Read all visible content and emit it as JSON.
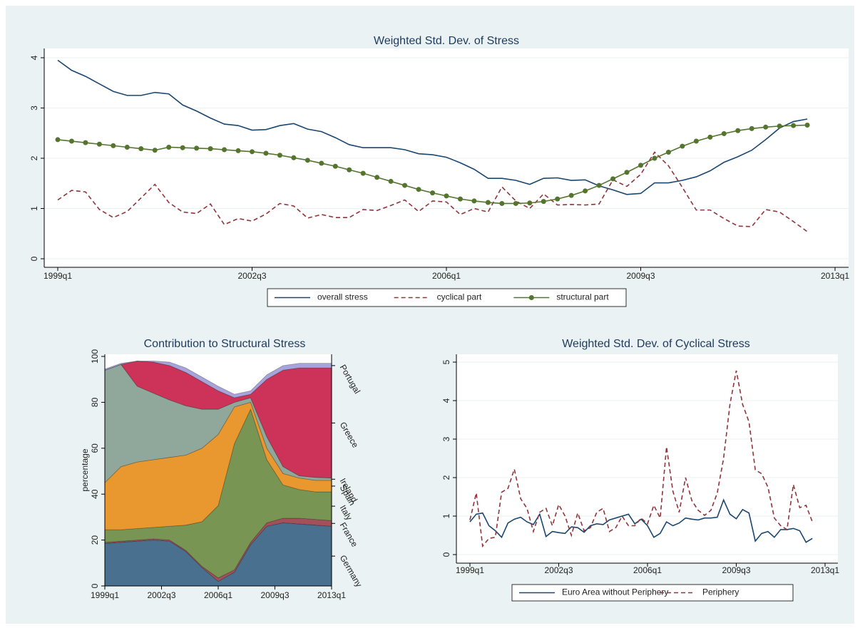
{
  "chart_data": [
    {
      "type": "line",
      "title": "Weighted Std. Dev. of Stress",
      "x": [
        "1999q1",
        "1999q2",
        "1999q3",
        "1999q4",
        "2000q1",
        "2000q2",
        "2000q3",
        "2000q4",
        "2001q1",
        "2001q2",
        "2001q3",
        "2001q4",
        "2002q1",
        "2002q2",
        "2002q3",
        "2002q4",
        "2003q1",
        "2003q2",
        "2003q3",
        "2003q4",
        "2004q1",
        "2004q2",
        "2004q3",
        "2004q4",
        "2005q1",
        "2005q2",
        "2005q3",
        "2005q4",
        "2006q1",
        "2006q2",
        "2006q3",
        "2006q4",
        "2007q1",
        "2007q2",
        "2007q3",
        "2007q4",
        "2008q1",
        "2008q2",
        "2008q3",
        "2008q4",
        "2009q1",
        "2009q2",
        "2009q3",
        "2009q4",
        "2010q1",
        "2010q2",
        "2010q3",
        "2010q4",
        "2011q1",
        "2011q2",
        "2011q3",
        "2011q4",
        "2012q1",
        "2012q2",
        "2012q3"
      ],
      "series": [
        {
          "name": "overall stress",
          "color": "#1a476f",
          "dash": false,
          "marker": false,
          "values": [
            3.95,
            3.75,
            3.63,
            3.48,
            3.33,
            3.25,
            3.25,
            3.31,
            3.28,
            3.06,
            2.94,
            2.8,
            2.68,
            2.65,
            2.56,
            2.57,
            2.65,
            2.69,
            2.58,
            2.53,
            2.41,
            2.27,
            2.21,
            2.21,
            2.21,
            2.17,
            2.09,
            2.07,
            2.02,
            1.91,
            1.78,
            1.6,
            1.6,
            1.56,
            1.48,
            1.6,
            1.61,
            1.56,
            1.57,
            1.45,
            1.37,
            1.28,
            1.3,
            1.51,
            1.51,
            1.56,
            1.63,
            1.75,
            1.92,
            2.03,
            2.16,
            2.37,
            2.6,
            2.73,
            2.78
          ]
        },
        {
          "name": "cyclical part",
          "color": "#90353b",
          "dash": true,
          "marker": false,
          "values": [
            1.17,
            1.36,
            1.33,
            0.98,
            0.82,
            0.94,
            1.21,
            1.48,
            1.12,
            0.93,
            0.9,
            1.09,
            0.68,
            0.8,
            0.75,
            0.89,
            1.1,
            1.05,
            0.81,
            0.88,
            0.82,
            0.82,
            0.98,
            0.96,
            1.06,
            1.17,
            0.94,
            1.15,
            1.13,
            0.88,
            1.0,
            0.93,
            1.43,
            1.15,
            1.0,
            1.29,
            1.07,
            1.08,
            1.07,
            1.09,
            1.57,
            1.44,
            1.68,
            2.12,
            1.85,
            1.42,
            0.97,
            0.97,
            0.8,
            0.65,
            0.64,
            0.98,
            0.93,
            0.74,
            0.54
          ]
        },
        {
          "name": "structural part",
          "color": "#55752f",
          "dash": false,
          "marker": true,
          "values": [
            2.37,
            2.34,
            2.31,
            2.28,
            2.25,
            2.22,
            2.19,
            2.16,
            2.22,
            2.21,
            2.2,
            2.19,
            2.17,
            2.15,
            2.13,
            2.1,
            2.06,
            2.01,
            1.96,
            1.9,
            1.84,
            1.77,
            1.7,
            1.62,
            1.54,
            1.46,
            1.38,
            1.31,
            1.25,
            1.19,
            1.15,
            1.12,
            1.1,
            1.1,
            1.11,
            1.14,
            1.19,
            1.26,
            1.35,
            1.46,
            1.59,
            1.72,
            1.86,
            2.0,
            2.12,
            2.24,
            2.34,
            2.42,
            2.49,
            2.55,
            2.59,
            2.62,
            2.64,
            2.65,
            2.66
          ]
        }
      ],
      "xlim": [
        "1999q1",
        "2013q1"
      ],
      "xticks": [
        "1999q1",
        "2002q3",
        "2006q1",
        "2009q3",
        "2013q1"
      ],
      "ylim": [
        0,
        4
      ],
      "yticks": [
        0,
        1,
        2,
        3,
        4
      ],
      "grid": true,
      "legend": "bottom"
    },
    {
      "type": "area",
      "title": "Contribution to Structural Stress",
      "ylabel": "percentage",
      "stacked": true,
      "x": [
        "1999q1",
        "2000q1",
        "2001q1",
        "2002q1",
        "2003q1",
        "2004q1",
        "2005q1",
        "2006q1",
        "2007q1",
        "2008q1",
        "2009q1",
        "2010q1",
        "2011q1",
        "2012q1",
        "2013q1"
      ],
      "series": [
        {
          "name": "Germany",
          "color": "#49708f",
          "values": [
            18.5,
            19,
            19.5,
            20,
            19.5,
            15,
            8,
            2,
            6,
            18,
            26,
            27.5,
            27,
            26.5,
            26
          ]
        },
        {
          "name": "France",
          "color": "#a4505a",
          "values": [
            0.5,
            0.5,
            0.5,
            0.5,
            0.5,
            0.5,
            0.5,
            1.5,
            1,
            1,
            1.5,
            2,
            2.5,
            2.5,
            2.5
          ]
        },
        {
          "name": "Italy",
          "color": "#789553",
          "values": [
            5.5,
            5,
            5,
            5,
            6,
            11,
            19.5,
            31.5,
            55,
            58,
            27.5,
            14.5,
            12.5,
            12,
            12.5
          ]
        },
        {
          "name": "Spain",
          "color": "#e8982f",
          "values": [
            20.5,
            27.5,
            29,
            29.5,
            30,
            30.5,
            32,
            31,
            16,
            3,
            5,
            5,
            5,
            5,
            5
          ]
        },
        {
          "name": "Ireland",
          "color": "#8fa89b",
          "values": [
            49,
            44.5,
            33,
            29,
            25,
            21.5,
            17,
            11,
            2,
            2,
            5,
            3,
            1,
            1.3,
            1
          ]
        },
        {
          "name": "Greece",
          "color": "#cd3359",
          "values": [
            0,
            0,
            11,
            13.5,
            15,
            14.5,
            12,
            8,
            2,
            1.5,
            25,
            42,
            47,
            47.7,
            48
          ]
        },
        {
          "name": "Portugal",
          "color": "#a6a4da",
          "values": [
            0.5,
            0.5,
            0,
            0.5,
            1.5,
            2,
            2,
            2,
            1.5,
            1.5,
            2,
            2,
            2,
            2,
            2
          ]
        }
      ],
      "xlim": [
        "1999q1",
        "2013q1"
      ],
      "xticks": [
        "1999q1",
        "2002q3",
        "2006q1",
        "2009q3",
        "2013q1"
      ],
      "ylim": [
        0,
        100
      ],
      "yticks": [
        0,
        20,
        40,
        60,
        80,
        100
      ],
      "grid": false,
      "legend": "right"
    },
    {
      "type": "line",
      "title": "Weighted Std. Dev. of Cyclical Stress",
      "x": [
        "1999q1",
        "1999q2",
        "1999q3",
        "1999q4",
        "2000q1",
        "2000q2",
        "2000q3",
        "2000q4",
        "2001q1",
        "2001q2",
        "2001q3",
        "2001q4",
        "2002q1",
        "2002q2",
        "2002q3",
        "2002q4",
        "2003q1",
        "2003q2",
        "2003q3",
        "2003q4",
        "2004q1",
        "2004q2",
        "2004q3",
        "2004q4",
        "2005q1",
        "2005q2",
        "2005q3",
        "2005q4",
        "2006q1",
        "2006q2",
        "2006q3",
        "2006q4",
        "2007q1",
        "2007q2",
        "2007q3",
        "2007q4",
        "2008q1",
        "2008q2",
        "2008q3",
        "2008q4",
        "2009q1",
        "2009q2",
        "2009q3",
        "2009q4",
        "2010q1",
        "2010q2",
        "2010q3",
        "2010q4",
        "2011q1",
        "2011q2",
        "2011q3",
        "2011q4",
        "2012q1",
        "2012q2",
        "2012q3"
      ],
      "series": [
        {
          "name": "Euro Area without Periphery",
          "color": "#1a476f",
          "dash": false,
          "marker": false,
          "values": [
            0.85,
            1.05,
            1.08,
            0.75,
            0.62,
            0.45,
            0.82,
            0.92,
            0.97,
            0.85,
            0.78,
            1.05,
            0.47,
            0.6,
            0.57,
            0.55,
            0.72,
            0.7,
            0.58,
            0.75,
            0.8,
            0.78,
            0.9,
            0.95,
            1.0,
            1.05,
            0.8,
            0.92,
            0.75,
            0.45,
            0.55,
            0.85,
            0.75,
            0.82,
            0.95,
            0.92,
            0.9,
            0.95,
            0.95,
            0.97,
            1.42,
            1.05,
            0.93,
            1.17,
            1.08,
            0.35,
            0.55,
            0.6,
            0.45,
            0.65,
            0.65,
            0.68,
            0.62,
            0.32,
            0.42
          ]
        },
        {
          "name": "Periphery",
          "color": "#90353b",
          "dash": true,
          "marker": false,
          "values": [
            0.9,
            1.6,
            0.22,
            0.42,
            0.45,
            1.62,
            1.72,
            2.22,
            1.45,
            1.2,
            0.6,
            1.1,
            1.2,
            0.75,
            1.3,
            1.0,
            0.5,
            1.08,
            0.62,
            0.7,
            1.1,
            1.2,
            0.6,
            0.7,
            1.0,
            0.75,
            0.75,
            0.95,
            0.8,
            1.28,
            0.95,
            2.8,
            1.65,
            1.1,
            2.0,
            1.4,
            1.15,
            1.02,
            1.15,
            1.6,
            2.5,
            3.9,
            4.78,
            3.9,
            3.45,
            2.2,
            2.1,
            1.75,
            0.95,
            0.75,
            0.65,
            1.82,
            1.22,
            1.28,
            0.85
          ]
        }
      ],
      "xlim": [
        "1999q1",
        "2013q1"
      ],
      "xticks": [
        "1999q1",
        "2002q3",
        "2006q1",
        "2009q3",
        "2013q1"
      ],
      "ylim": [
        0,
        5
      ],
      "yticks": [
        0,
        1,
        2,
        3,
        4,
        5
      ],
      "grid": true,
      "legend": "bottom"
    }
  ]
}
